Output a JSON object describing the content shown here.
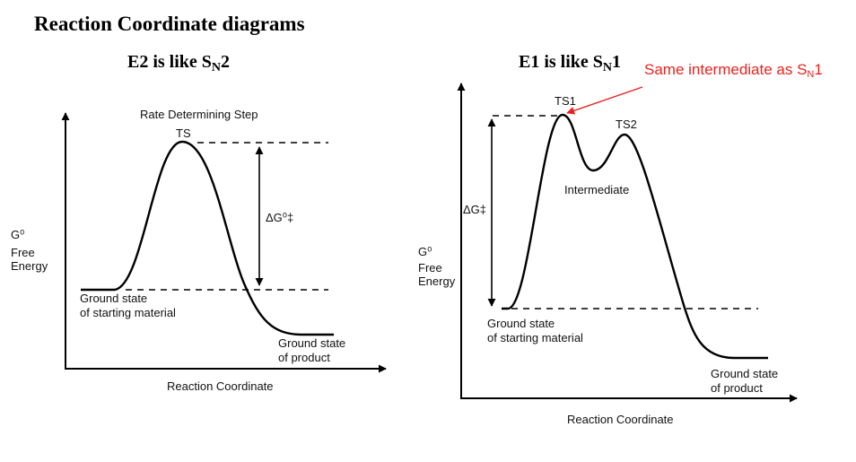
{
  "title": "Reaction Coordinate diagrams",
  "callout": {
    "text": "Same intermediate as S",
    "sub": "N",
    "tail": "1",
    "color": "#e8231f"
  },
  "e2": {
    "title_main": "E2 is like S",
    "title_sub": "N",
    "title_tail": "2",
    "top_label": "Rate Determining Step",
    "ts_label": "TS",
    "delta_g": "ΔG⁰‡",
    "y_axis": [
      "G⁰",
      "Free",
      "Energy"
    ],
    "ground_start": [
      "Ground state",
      "of starting material"
    ],
    "ground_product": [
      "Ground state",
      "of product"
    ],
    "x_axis": "Reaction Coordinate"
  },
  "e1": {
    "title_main": "E1 is like S",
    "title_sub": "N",
    "title_tail": "1",
    "ts1_label": "TS1",
    "ts2_label": "TS2",
    "intermediate_label": "Intermediate",
    "delta_g": "ΔG‡",
    "y_axis": [
      "G⁰",
      "Free",
      "Energy"
    ],
    "ground_start": [
      "Ground state",
      "of starting material"
    ],
    "ground_product": [
      "Ground state",
      "of product"
    ],
    "x_axis": "Reaction Coordinate"
  }
}
